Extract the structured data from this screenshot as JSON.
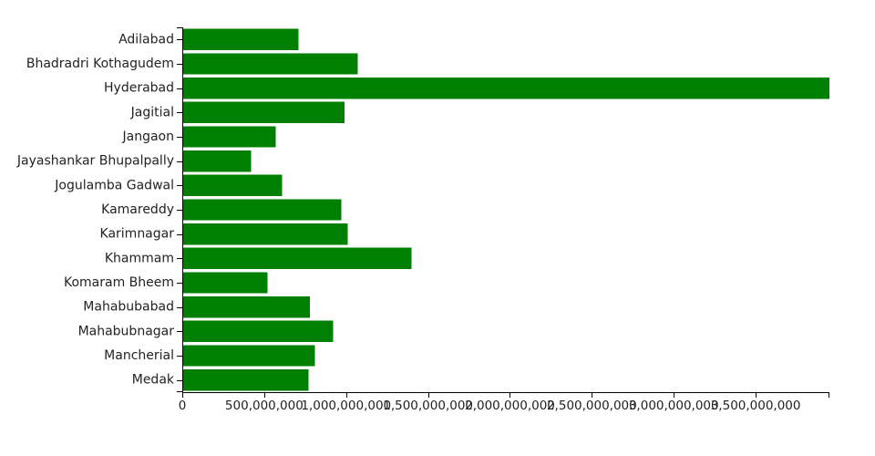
{
  "chart_data": {
    "type": "bar",
    "orientation": "horizontal",
    "title": "",
    "xlabel": "",
    "ylabel": "",
    "bar_color": "#008000",
    "xlim": [
      0,
      3950000000
    ],
    "x_ticks": [
      0,
      500000000,
      1000000000,
      1500000000,
      2000000000,
      2500000000,
      3000000000,
      3500000000
    ],
    "x_tick_labels": [
      "0",
      "500,000,000",
      "1,000,000,000",
      "1,500,000,000",
      "2,000,000,000",
      "2,500,000,000",
      "3,000,000,000",
      "3,500,000,000"
    ],
    "grid": false,
    "legend": "none",
    "categories": [
      "Adilabad",
      "Bhadradri Kothagudem",
      "Hyderabad",
      "Jagitial",
      "Jangaon",
      "Jayashankar Bhupalpally",
      "Jogulamba Gadwal",
      "Kamareddy",
      "Karimnagar",
      "Khammam",
      "Komaram Bheem",
      "Mahabubabad",
      "Mahabubnagar",
      "Mancherial",
      "Medak"
    ],
    "values": [
      710000000,
      1070000000,
      3950000000,
      990000000,
      570000000,
      420000000,
      610000000,
      970000000,
      1010000000,
      1400000000,
      520000000,
      780000000,
      920000000,
      810000000,
      770000000
    ]
  }
}
